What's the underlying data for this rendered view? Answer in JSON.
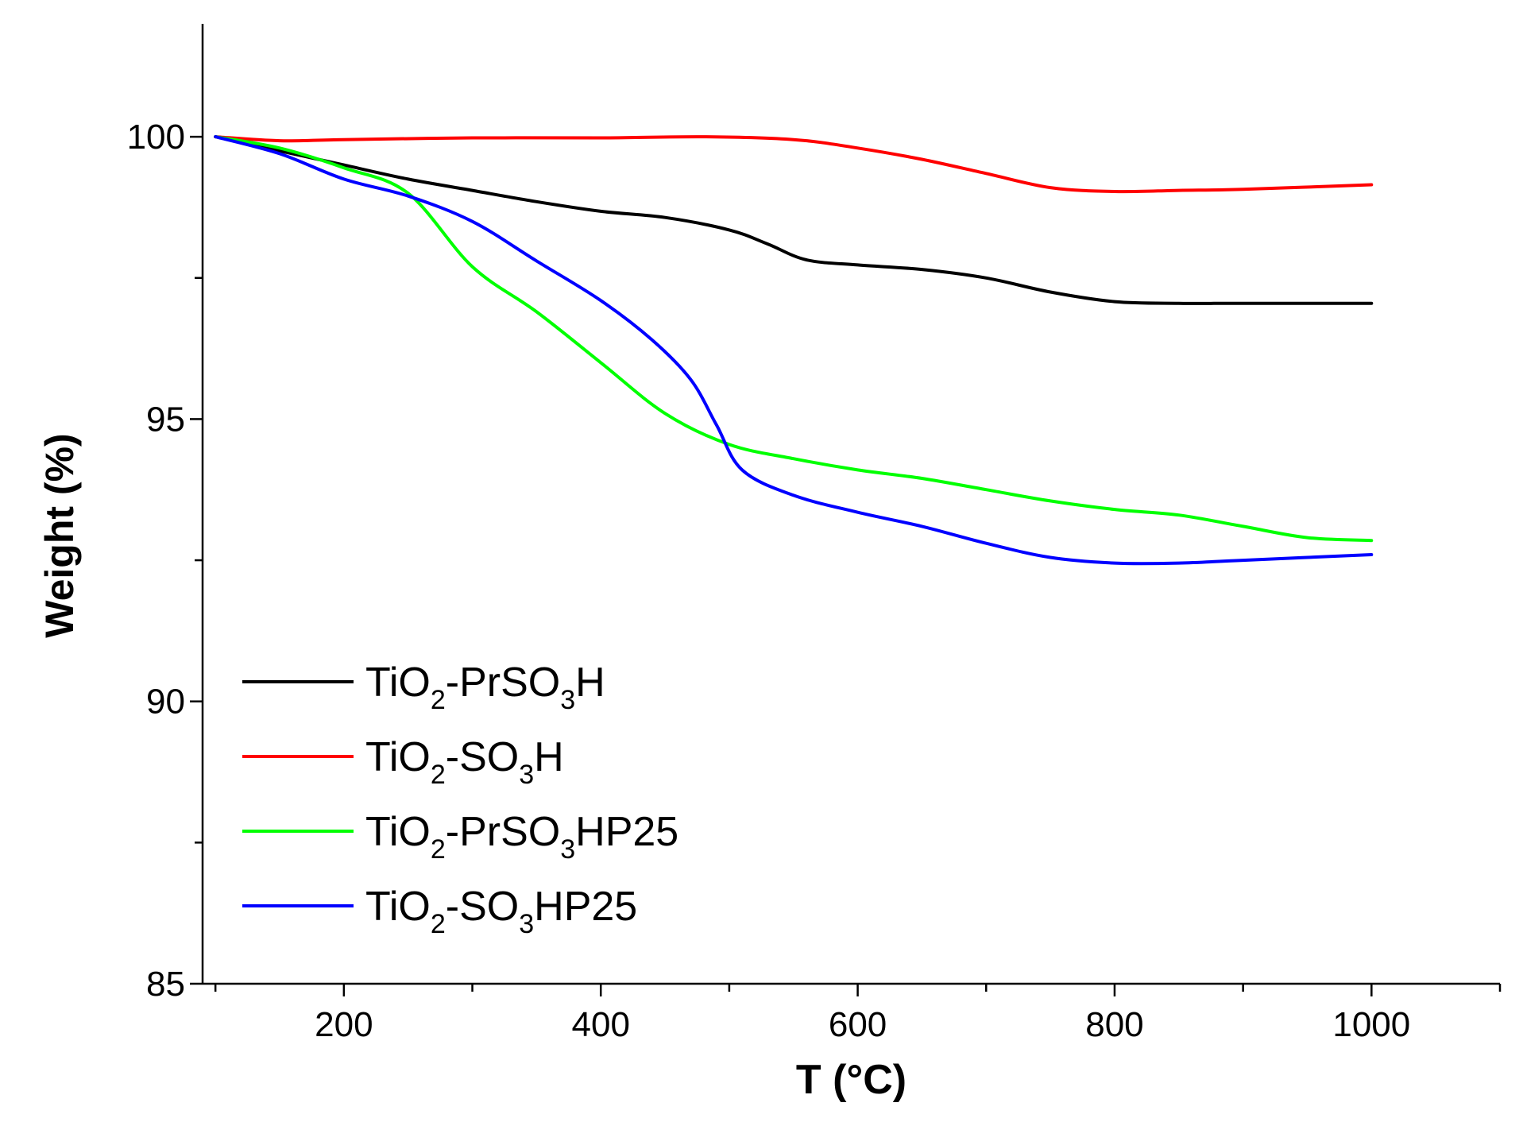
{
  "chart_data": {
    "type": "line",
    "title": "",
    "xlabel": "T (°C)",
    "ylabel": "Weight (%)",
    "xlim": [
      90,
      1100
    ],
    "ylim": [
      85,
      102
    ],
    "xticks": [
      200,
      400,
      600,
      800,
      1000
    ],
    "xticks_minor": [
      100,
      300,
      500,
      700,
      900,
      1100
    ],
    "yticks": [
      85,
      90,
      95,
      100
    ],
    "yticks_minor": [
      87.5,
      92.5,
      97.5
    ],
    "grid": false,
    "legend_position": "bottom-left",
    "series": [
      {
        "name": "TiO2-PrSO3H",
        "legend": {
          "base": "TiO",
          "sub1": "2",
          "mid": "-PrSO",
          "sub2": "3",
          "tail": "H"
        },
        "color": "#000000",
        "points": [
          [
            100,
            100.0
          ],
          [
            150,
            99.75
          ],
          [
            200,
            99.5
          ],
          [
            250,
            99.25
          ],
          [
            300,
            99.05
          ],
          [
            350,
            98.85
          ],
          [
            400,
            98.68
          ],
          [
            450,
            98.57
          ],
          [
            500,
            98.35
          ],
          [
            530,
            98.1
          ],
          [
            560,
            97.82
          ],
          [
            600,
            97.73
          ],
          [
            650,
            97.65
          ],
          [
            700,
            97.5
          ],
          [
            750,
            97.25
          ],
          [
            800,
            97.08
          ],
          [
            850,
            97.05
          ],
          [
            900,
            97.05
          ],
          [
            1000,
            97.05
          ]
        ]
      },
      {
        "name": "TiO2-SO3H",
        "legend": {
          "base": "TiO",
          "sub1": "2",
          "mid": "-SO",
          "sub2": "3",
          "tail": "H"
        },
        "color": "#ff0000",
        "points": [
          [
            100,
            100.0
          ],
          [
            150,
            99.93
          ],
          [
            200,
            99.95
          ],
          [
            300,
            99.98
          ],
          [
            400,
            99.98
          ],
          [
            480,
            100.0
          ],
          [
            550,
            99.95
          ],
          [
            600,
            99.8
          ],
          [
            650,
            99.6
          ],
          [
            700,
            99.35
          ],
          [
            750,
            99.1
          ],
          [
            800,
            99.03
          ],
          [
            850,
            99.05
          ],
          [
            900,
            99.07
          ],
          [
            1000,
            99.15
          ]
        ]
      },
      {
        "name": "TiO2-PrSO3HP25",
        "legend": {
          "base": "TiO",
          "sub1": "2",
          "mid": "-PrSO",
          "sub2": "3",
          "tail": "HP25"
        },
        "color": "#00ff00",
        "points": [
          [
            100,
            100.0
          ],
          [
            150,
            99.8
          ],
          [
            200,
            99.45
          ],
          [
            250,
            99.0
          ],
          [
            300,
            97.7
          ],
          [
            350,
            96.9
          ],
          [
            400,
            96.0
          ],
          [
            450,
            95.1
          ],
          [
            500,
            94.55
          ],
          [
            550,
            94.3
          ],
          [
            600,
            94.1
          ],
          [
            650,
            93.95
          ],
          [
            700,
            93.75
          ],
          [
            750,
            93.55
          ],
          [
            800,
            93.4
          ],
          [
            850,
            93.3
          ],
          [
            900,
            93.1
          ],
          [
            950,
            92.9
          ],
          [
            1000,
            92.85
          ]
        ]
      },
      {
        "name": "TiO2-SO3HP25",
        "legend": {
          "base": "TiO",
          "sub1": "2",
          "mid": "-SO",
          "sub2": "3",
          "tail": "HP25"
        },
        "color": "#0000ff",
        "points": [
          [
            100,
            100.0
          ],
          [
            150,
            99.7
          ],
          [
            200,
            99.25
          ],
          [
            250,
            98.95
          ],
          [
            300,
            98.5
          ],
          [
            350,
            97.8
          ],
          [
            400,
            97.1
          ],
          [
            440,
            96.4
          ],
          [
            470,
            95.7
          ],
          [
            490,
            94.9
          ],
          [
            510,
            94.1
          ],
          [
            550,
            93.65
          ],
          [
            600,
            93.35
          ],
          [
            650,
            93.1
          ],
          [
            700,
            92.8
          ],
          [
            750,
            92.55
          ],
          [
            800,
            92.45
          ],
          [
            850,
            92.45
          ],
          [
            900,
            92.5
          ],
          [
            1000,
            92.6
          ]
        ]
      }
    ]
  }
}
